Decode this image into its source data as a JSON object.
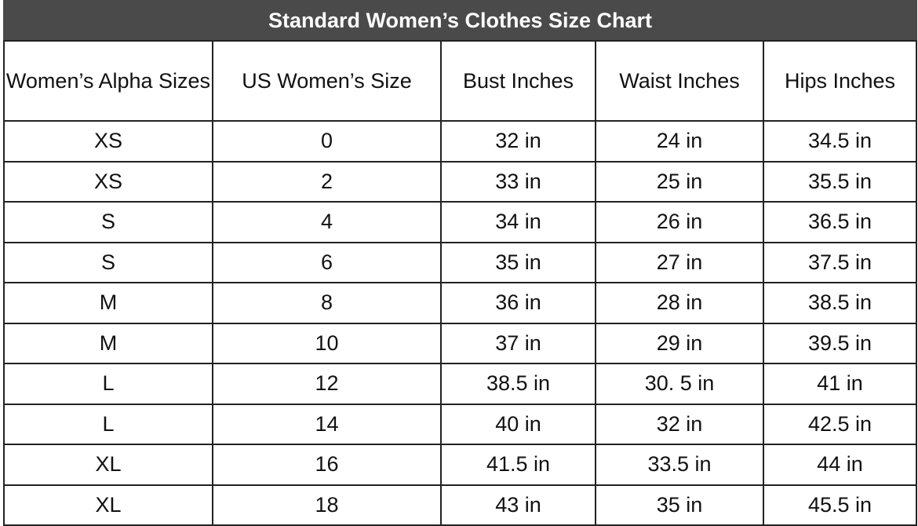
{
  "title": "Standard Women’s Clothes Size Chart",
  "header_color": "#4a4a4a",
  "columns": [
    "Women’s Alpha Sizes",
    "US Women’s Size",
    "Bust Inches",
    "Waist Inches",
    "Hips Inches"
  ],
  "rows": [
    [
      "XS",
      "0",
      "32 in",
      "24 in",
      "34.5 in"
    ],
    [
      "XS",
      "2",
      "33 in",
      "25 in",
      "35.5 in"
    ],
    [
      "S",
      "4",
      "34 in",
      "26 in",
      "36.5 in"
    ],
    [
      "S",
      "6",
      "35 in",
      "27 in",
      "37.5 in"
    ],
    [
      "M",
      "8",
      "36 in",
      "28 in",
      "38.5 in"
    ],
    [
      "M",
      "10",
      "37 in",
      "29 in",
      "39.5 in"
    ],
    [
      "L",
      "12",
      "38.5 in",
      "30. 5 in",
      "41 in"
    ],
    [
      "L",
      "14",
      "40 in",
      "32 in",
      "42.5 in"
    ],
    [
      "XL",
      "16",
      "41.5 in",
      "33.5 in",
      "44 in"
    ],
    [
      "XL",
      "18",
      "43 in",
      "35 in",
      "45.5 in"
    ]
  ]
}
